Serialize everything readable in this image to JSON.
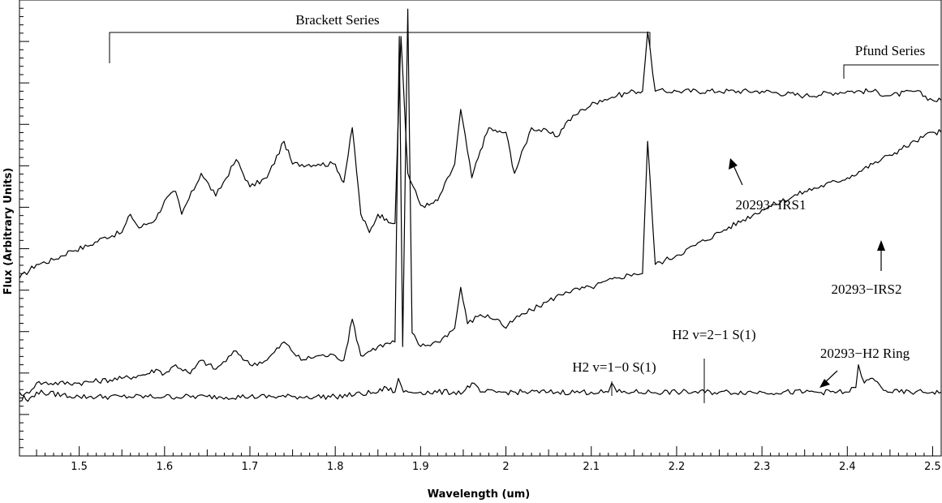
{
  "chart_data": {
    "type": "line",
    "title": "",
    "xlabel": "Wavelength (um)",
    "ylabel": "Flux (Arbitrary Units)",
    "xlim": [
      1.43,
      2.51
    ],
    "ylim": [
      0,
      1
    ],
    "x_ticks": [
      "1.5",
      "1.6",
      "1.7",
      "1.8",
      "1.9",
      "2",
      "2.1",
      "2.2",
      "2.3",
      "2.4",
      "2.5"
    ],
    "y_tick_labels_shown": false,
    "grid": false,
    "legend": "none",
    "series": [
      {
        "name": "20293−IRS1",
        "x": [
          1.43,
          1.45,
          1.47,
          1.49,
          1.51,
          1.53,
          1.55,
          1.56,
          1.57,
          1.59,
          1.6,
          1.613,
          1.62,
          1.643,
          1.66,
          1.684,
          1.7,
          1.72,
          1.74,
          1.75,
          1.78,
          1.8,
          1.81,
          1.82,
          1.83,
          1.84,
          1.85,
          1.86,
          1.87,
          1.877,
          1.885,
          1.9,
          1.91,
          1.92,
          1.94,
          1.947,
          1.96,
          1.97,
          1.98,
          1.99,
          2.0,
          2.01,
          2.03,
          2.05,
          2.06,
          2.07,
          2.09,
          2.11,
          2.13,
          2.15,
          2.16,
          2.166,
          2.175,
          2.2,
          2.25,
          2.3,
          2.35,
          2.4,
          2.43,
          2.45,
          2.48,
          2.5,
          2.51
        ],
        "y": [
          0.39,
          0.42,
          0.43,
          0.45,
          0.46,
          0.48,
          0.49,
          0.53,
          0.5,
          0.52,
          0.56,
          0.58,
          0.53,
          0.62,
          0.57,
          0.65,
          0.59,
          0.61,
          0.69,
          0.64,
          0.64,
          0.64,
          0.6,
          0.72,
          0.53,
          0.49,
          0.53,
          0.52,
          0.51,
          0.92,
          0.62,
          0.55,
          0.55,
          0.56,
          0.64,
          0.76,
          0.61,
          0.67,
          0.72,
          0.71,
          0.71,
          0.62,
          0.72,
          0.71,
          0.7,
          0.73,
          0.76,
          0.78,
          0.79,
          0.8,
          0.8,
          0.93,
          0.8,
          0.8,
          0.8,
          0.8,
          0.79,
          0.8,
          0.8,
          0.79,
          0.8,
          0.78,
          0.78
        ]
      },
      {
        "name": "20293−IRS2",
        "x": [
          1.43,
          1.45,
          1.5,
          1.55,
          1.58,
          1.59,
          1.6,
          1.613,
          1.63,
          1.643,
          1.66,
          1.684,
          1.7,
          1.72,
          1.74,
          1.76,
          1.78,
          1.8,
          1.81,
          1.82,
          1.83,
          1.85,
          1.87,
          1.875,
          1.879,
          1.885,
          1.89,
          1.9,
          1.92,
          1.94,
          1.947,
          1.955,
          1.97,
          1.99,
          2.0,
          2.01,
          2.03,
          2.05,
          2.07,
          2.1,
          2.13,
          2.15,
          2.16,
          2.166,
          2.175,
          2.2,
          2.25,
          2.3,
          2.35,
          2.4,
          2.43,
          2.45,
          2.48,
          2.5,
          2.51
        ],
        "y": [
          0.12,
          0.16,
          0.16,
          0.17,
          0.18,
          0.19,
          0.18,
          0.2,
          0.18,
          0.21,
          0.19,
          0.23,
          0.2,
          0.21,
          0.25,
          0.21,
          0.22,
          0.22,
          0.21,
          0.3,
          0.22,
          0.24,
          0.25,
          0.92,
          0.24,
          0.98,
          0.27,
          0.24,
          0.25,
          0.28,
          0.37,
          0.29,
          0.31,
          0.3,
          0.28,
          0.3,
          0.32,
          0.34,
          0.36,
          0.37,
          0.39,
          0.4,
          0.4,
          0.69,
          0.42,
          0.44,
          0.49,
          0.54,
          0.58,
          0.61,
          0.64,
          0.66,
          0.69,
          0.71,
          0.71
        ]
      },
      {
        "name": "20293−H2 Ring",
        "x": [
          1.43,
          1.44,
          1.45,
          1.5,
          1.55,
          1.6,
          1.65,
          1.7,
          1.75,
          1.8,
          1.85,
          1.86,
          1.87,
          1.874,
          1.88,
          1.9,
          1.95,
          1.96,
          1.97,
          2.0,
          2.05,
          2.1,
          2.12,
          2.124,
          2.13,
          2.15,
          2.2,
          2.25,
          2.3,
          2.35,
          2.4,
          2.41,
          2.413,
          2.42,
          2.43,
          2.44,
          2.45,
          2.48,
          2.5,
          2.51
        ],
        "y": [
          0.14,
          0.12,
          0.14,
          0.13,
          0.13,
          0.13,
          0.13,
          0.13,
          0.13,
          0.13,
          0.14,
          0.15,
          0.14,
          0.17,
          0.14,
          0.14,
          0.14,
          0.16,
          0.14,
          0.14,
          0.14,
          0.14,
          0.14,
          0.16,
          0.14,
          0.14,
          0.14,
          0.14,
          0.14,
          0.14,
          0.14,
          0.15,
          0.2,
          0.16,
          0.17,
          0.15,
          0.14,
          0.14,
          0.14,
          0.14
        ]
      }
    ],
    "annotations": {
      "brackett": "Brackett Series",
      "pfund": "Pfund Series",
      "irs1": "20293−IRS1",
      "irs2": "20293−IRS2",
      "h2_10": "H2 v=1−0 S(1)",
      "h2_21": "H2 v=2−1 S(1)",
      "h2ring": "20293−H2 Ring"
    }
  }
}
